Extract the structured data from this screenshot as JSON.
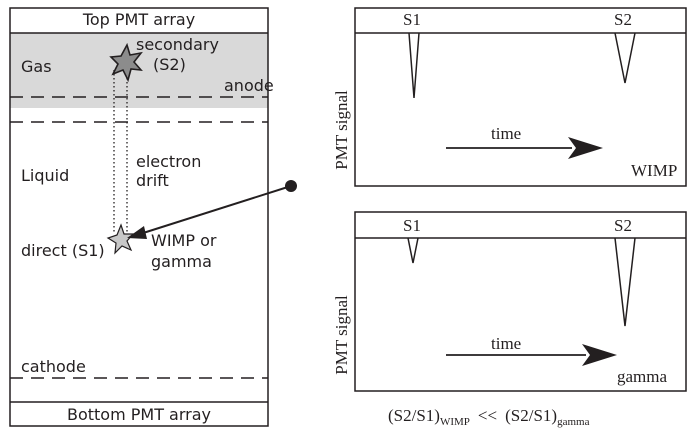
{
  "detector": {
    "top_array_label": "Top PMT array",
    "bottom_array_label": "Bottom PMT array",
    "gas_label": "Gas",
    "liquid_label": "Liquid",
    "anode_label": "anode",
    "cathode_label": "cathode",
    "secondary_label_line1": "secondary",
    "secondary_label_line2": "(S2)",
    "drift_label_line1": "electron",
    "drift_label_line2": "drift",
    "direct_label": "direct (S1)",
    "particle_label_line1": "WIMP or",
    "particle_label_line2": "gamma",
    "gas_color": "#d9d9d9"
  },
  "plots": [
    {
      "ylabel": "PMT signal",
      "s1_label": "S1",
      "s2_label": "S2",
      "time_label": "time",
      "case_label": "WIMP",
      "s1_depth": 65,
      "s2_depth": 50
    },
    {
      "ylabel": "PMT signal",
      "s1_label": "S1",
      "s2_label": "S2",
      "time_label": "time",
      "case_label": "gamma",
      "s1_depth": 25,
      "s2_depth": 88
    }
  ],
  "relation": {
    "lhs": "(S2/S1)",
    "lhs_sub": "WIMP",
    "op": "<<",
    "rhs": "(S2/S1)",
    "rhs_sub": "gamma"
  }
}
